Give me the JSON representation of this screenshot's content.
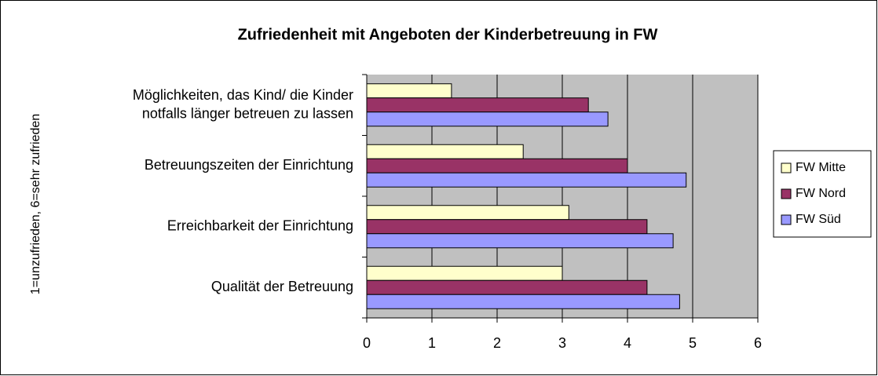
{
  "chart_data": {
    "type": "bar",
    "orientation": "horizontal",
    "title": "Zufriedenheit mit Angeboten der Kinderbetreuung in FW",
    "y_label": "1=unzufrieden, 6=sehr zufrieden",
    "categories": [
      "Möglichkeiten, das Kind/ die Kinder\nnotfalls länger betreuen zu lassen",
      "Betreuungszeiten der Einrichtung",
      "Erreichbarkeit der Einrichtung",
      "Qualität der Betreuung"
    ],
    "series": [
      {
        "name": "FW Mitte",
        "color": "#ffffcc",
        "values": [
          1.3,
          2.4,
          3.1,
          3.0
        ]
      },
      {
        "name": "FW Nord",
        "color": "#993366",
        "values": [
          3.4,
          4.0,
          4.3,
          4.3
        ]
      },
      {
        "name": "FW Süd",
        "color": "#9999ff",
        "values": [
          3.7,
          4.9,
          4.7,
          4.8
        ]
      }
    ],
    "xlim": [
      0,
      6
    ],
    "xticks": [
      0,
      1,
      2,
      3,
      4,
      5,
      6
    ],
    "grid": true,
    "legend": "right"
  }
}
